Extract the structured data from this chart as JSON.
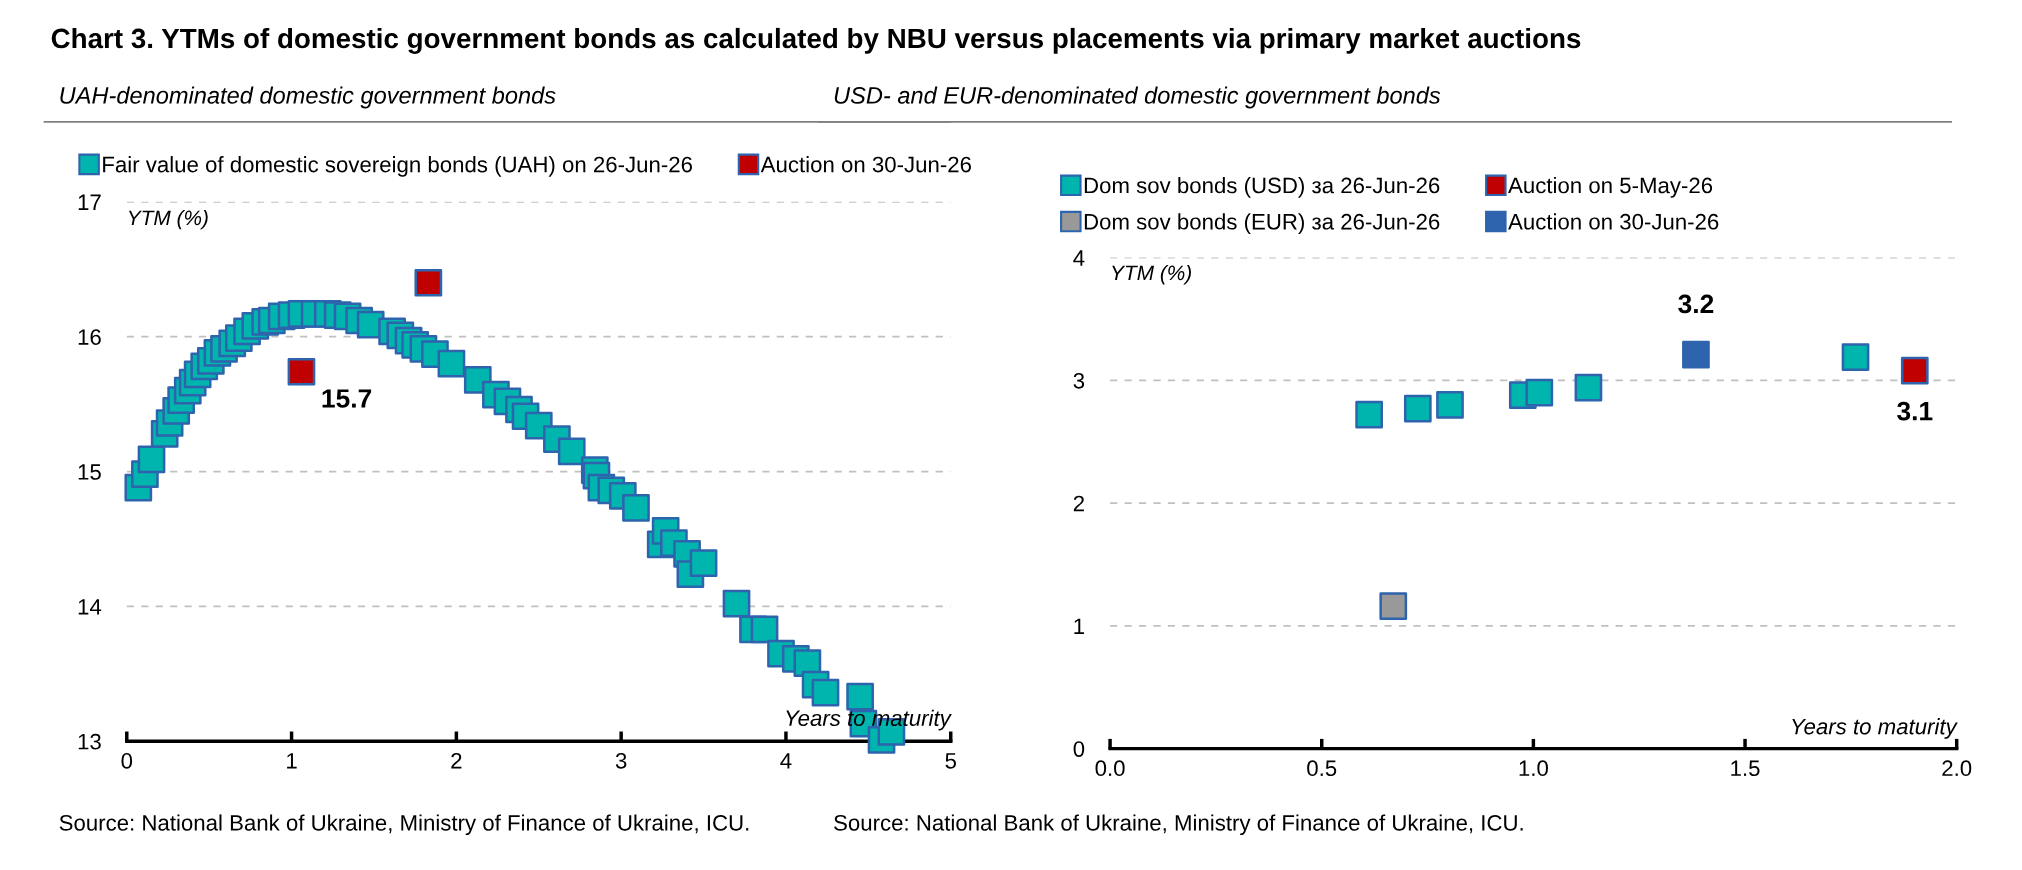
{
  "chart_data": [
    {
      "type": "scatter",
      "title": "Chart 3. YTMs of domestic government bonds as calculated by NBU versus placements via primary market auctions",
      "subtitle": "UAH-denominated domestic government bonds",
      "xlabel": "Years to maturity",
      "ylabel": "YTM (%)",
      "xlim": [
        0,
        5
      ],
      "xticks": [
        0,
        1,
        2,
        3,
        4,
        5
      ],
      "ylim": [
        13,
        17
      ],
      "yticks": [
        13,
        14,
        15,
        16,
        17
      ],
      "grid": "y",
      "legend": "top",
      "marker": "square",
      "series": [
        {
          "name": "Fair value of domestic sovereign bonds (UAH) on 26-Jun-26",
          "color": "#00b5ad",
          "x": [
            0.07,
            0.11,
            0.15,
            0.23,
            0.26,
            0.3,
            0.33,
            0.37,
            0.4,
            0.43,
            0.47,
            0.51,
            0.55,
            0.59,
            0.64,
            0.68,
            0.73,
            0.78,
            0.84,
            0.88,
            0.94,
            1.0,
            1.06,
            1.14,
            1.22,
            1.28,
            1.34,
            1.41,
            1.48,
            1.61,
            1.66,
            1.71,
            1.75,
            1.8,
            1.87,
            1.97,
            2.13,
            2.24,
            2.31,
            2.38,
            2.42,
            2.5,
            2.61,
            2.7,
            2.84,
            2.85,
            2.88,
            2.94,
            3.01,
            3.09,
            3.24,
            3.27,
            3.32,
            3.4,
            3.42,
            3.5,
            3.7,
            3.8,
            3.87,
            3.97,
            4.06,
            4.13,
            4.18,
            4.24,
            4.45,
            4.47,
            4.58,
            4.64
          ],
          "values": [
            14.88,
            14.98,
            15.09,
            15.28,
            15.36,
            15.45,
            15.53,
            15.6,
            15.66,
            15.72,
            15.78,
            15.82,
            15.88,
            15.91,
            15.95,
            15.99,
            16.04,
            16.08,
            16.11,
            16.12,
            16.15,
            16.16,
            16.17,
            16.17,
            16.17,
            16.16,
            16.15,
            16.12,
            16.09,
            16.04,
            16.01,
            15.97,
            15.94,
            15.91,
            15.87,
            15.8,
            15.68,
            15.57,
            15.52,
            15.46,
            15.41,
            15.34,
            15.24,
            15.15,
            15.01,
            14.97,
            14.88,
            14.86,
            14.82,
            14.73,
            14.46,
            14.56,
            14.47,
            14.39,
            14.24,
            14.32,
            14.02,
            13.83,
            13.83,
            13.65,
            13.61,
            13.58,
            13.42,
            13.36,
            13.33,
            13.13,
            13.01,
            13.07
          ]
        },
        {
          "name": "Auction on 30-Jun-26",
          "color": "#c00000",
          "x": [
            1.06,
            1.83
          ],
          "values": [
            15.74,
            16.4
          ],
          "value_labels": [
            "15.7",
            null
          ]
        }
      ],
      "annotations": [
        "Source: National Bank of Ukraine, Ministry of Finance of Ukraine, ICU."
      ]
    },
    {
      "type": "scatter",
      "subtitle": "USD- and EUR-denominated domestic government bonds",
      "xlabel": "Years to maturity",
      "ylabel": "YTM (%)",
      "xlim": [
        0,
        2
      ],
      "xticks": [
        {
          "value": 0,
          "label": "0.0"
        },
        0.5,
        {
          "value": 1,
          "label": "1.0"
        },
        1.5,
        {
          "value": 2,
          "label": "2.0"
        }
      ],
      "ylim": [
        0,
        4
      ],
      "yticks": [
        0,
        1,
        2,
        3,
        4
      ],
      "grid": "y",
      "legend": "top",
      "marker": "square",
      "series": [
        {
          "name": "Dom sov bonds (USD) за 26-Jun-26",
          "color": "#00b5ad",
          "x": [
            0.612,
            0.727,
            0.803,
            0.975,
            1.014,
            1.13,
            1.761
          ],
          "values": [
            2.72,
            2.77,
            2.8,
            2.88,
            2.9,
            2.94,
            3.19
          ]
        },
        {
          "name": "Dom sov bonds (EUR) за 26-Jun-26",
          "color": "#999999",
          "x": [
            0.669
          ],
          "values": [
            1.16
          ]
        },
        {
          "name": "Auction on 5-May-26",
          "color": "#c00000",
          "x": [
            1.901
          ],
          "values": [
            3.08
          ],
          "value_labels": [
            "3.1"
          ]
        },
        {
          "name": "Auction on 30-Jun-26",
          "color": "#2e64ad",
          "x": [
            1.384
          ],
          "values": [
            3.21
          ],
          "value_labels": [
            "3.2"
          ]
        }
      ],
      "annotations": [
        "Source: National Bank of Ukraine, Ministry of Finance of Ukraine, ICU."
      ]
    }
  ]
}
